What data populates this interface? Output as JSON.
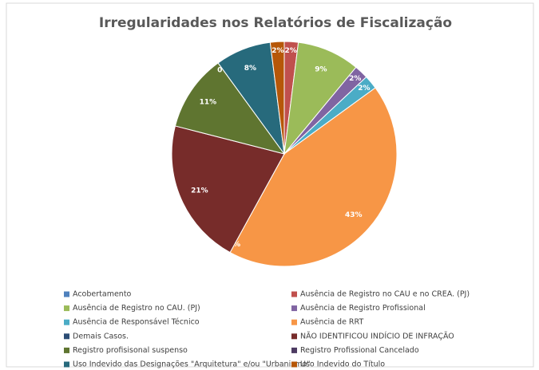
{
  "chart_data": {
    "type": "pie",
    "title": "Irregularidades nos Relatórios de Fiscalização",
    "categories": [
      "Acobertamento",
      "Ausência de Registro no CAU e no CREA. (PJ)",
      "Ausência de Registro no CAU. (PJ)",
      "Ausência de Registro Profissional",
      "Ausência de Responsável Técnico",
      "Ausência de RRT",
      "Demais Casos.",
      "NÃO IDENTIFICOU INDÍCIO DE INFRAÇÃO",
      "Registro profisisonal suspenso",
      "Registro Profissional Cancelado",
      "Uso Indevido das Designações \"Arquitetura\" e/ou \"Urbanismo\"",
      "Uso Indevido do Título"
    ],
    "values": [
      0,
      2,
      9,
      2,
      2,
      43,
      0,
      21,
      11,
      0,
      8,
      2
    ],
    "value_labels": [
      "0%",
      "2%",
      "9%",
      "2%",
      "2%",
      "43%",
      "0%",
      "21%",
      "11%",
      "0%",
      "8%",
      "2%"
    ],
    "colors": [
      "#4f81bd",
      "#c0504d",
      "#9bbb59",
      "#8064a2",
      "#4bacc6",
      "#f79646",
      "#2c4d75",
      "#772c2a",
      "#5f7530",
      "#4d3b62",
      "#276a7c",
      "#b65708"
    ]
  }
}
